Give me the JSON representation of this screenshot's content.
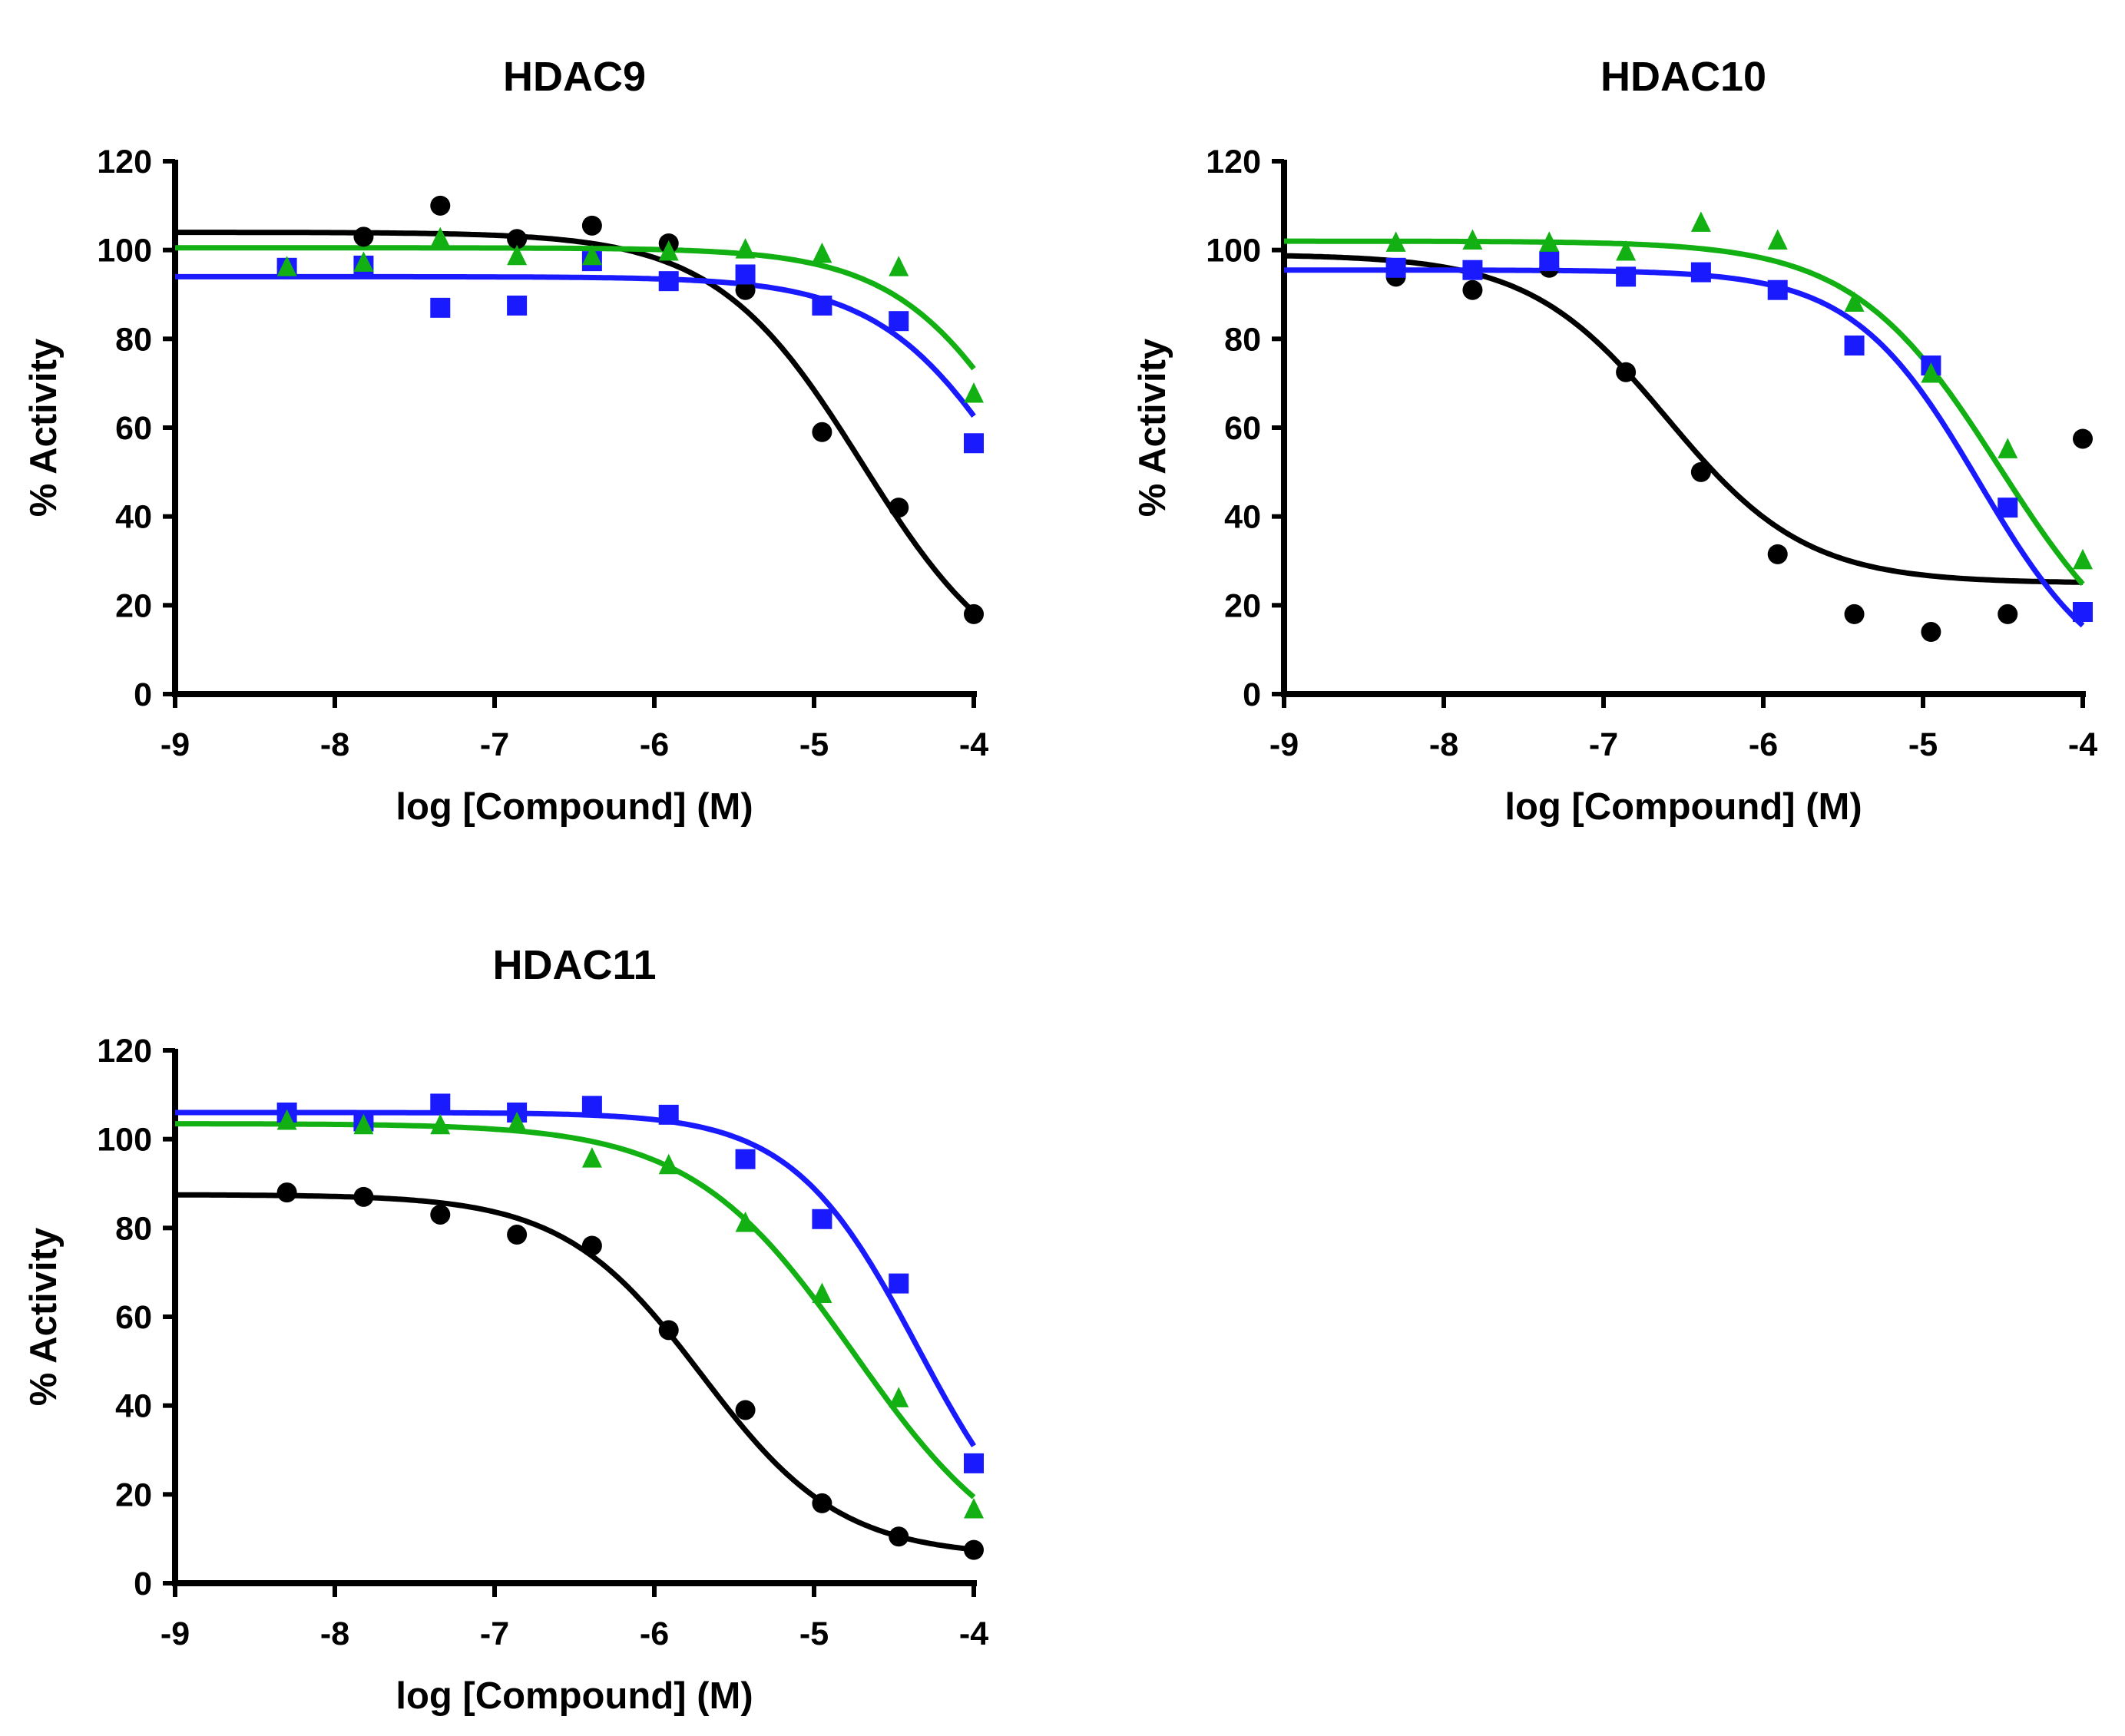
{
  "figure": {
    "description": "Dose-response curves of % Activity vs log compound concentration",
    "series_colors": {
      "black": "#000000",
      "blue": "#1a1aff",
      "green": "#12b012"
    },
    "series_markers": {
      "black": "circle",
      "blue": "square",
      "green": "triangle"
    }
  },
  "chart_data": [
    {
      "type": "scatter",
      "title": "HDAC9",
      "xlabel": "log [Compound] (M)",
      "ylabel": "% Activity",
      "xlim": [
        -9,
        -4
      ],
      "ylim": [
        0,
        120
      ],
      "xticks": [
        "-9",
        "-8",
        "-7",
        "-6",
        "-5",
        "-4"
      ],
      "yticks": [
        "0",
        "20",
        "40",
        "60",
        "80",
        "100",
        "120"
      ],
      "x": [
        -8.3,
        -7.82,
        -7.34,
        -6.86,
        -6.39,
        -5.91,
        -5.43,
        -4.95,
        -4.47,
        -4.0
      ],
      "series": [
        {
          "name": "black",
          "marker": "circle",
          "values": [
            96,
            103,
            110,
            102.5,
            105.5,
            101.5,
            91,
            59,
            42,
            18
          ],
          "fit": {
            "top": 104,
            "bottom": 0,
            "logIC50": -4.7,
            "hill": 0.95
          }
        },
        {
          "name": "blue",
          "marker": "square",
          "values": [
            96,
            96.5,
            87,
            87.5,
            97.5,
            93,
            94.5,
            87.5,
            84,
            56.5
          ],
          "fit": {
            "top": 94,
            "bottom": 0,
            "logIC50": -3.7,
            "hill": 1.0
          }
        },
        {
          "name": "green",
          "marker": "triangle",
          "values": [
            96,
            97,
            102.5,
            98.5,
            98.5,
            99.5,
            100,
            99,
            96,
            67.5
          ],
          "fit": {
            "top": 100.5,
            "bottom": 0,
            "logIC50": -3.57,
            "hill": 1.0
          }
        }
      ]
    },
    {
      "type": "scatter",
      "title": "HDAC10",
      "xlabel": "log [Compound] (M)",
      "ylabel": "% Activity",
      "xlim": [
        -9,
        -4
      ],
      "ylim": [
        0,
        120
      ],
      "xticks": [
        "-9",
        "-8",
        "-7",
        "-6",
        "-5",
        "-4"
      ],
      "yticks": [
        "0",
        "20",
        "40",
        "60",
        "80",
        "100",
        "120"
      ],
      "x": [
        -8.3,
        -7.82,
        -7.34,
        -6.86,
        -6.39,
        -5.91,
        -5.43,
        -4.95,
        -4.47,
        -4.0
      ],
      "series": [
        {
          "name": "black",
          "marker": "circle",
          "values": [
            94,
            91,
            96,
            72.5,
            50,
            31.5,
            18,
            14,
            18,
            57.5
          ],
          "fit": {
            "top": 99,
            "bottom": 25,
            "logIC50": -6.6,
            "hill": 1.0
          }
        },
        {
          "name": "blue",
          "marker": "square",
          "values": [
            96,
            95.5,
            97.5,
            94,
            95,
            91,
            78.5,
            74,
            42,
            18.5
          ],
          "fit": {
            "top": 95.5,
            "bottom": 0,
            "logIC50": -4.65,
            "hill": 1.1
          }
        },
        {
          "name": "green",
          "marker": "triangle",
          "values": [
            101.5,
            102,
            101.5,
            99.5,
            106,
            102,
            88,
            72,
            55,
            30
          ],
          "fit": {
            "top": 102,
            "bottom": 0,
            "logIC50": -4.52,
            "hill": 0.95
          }
        }
      ]
    },
    {
      "type": "scatter",
      "title": "HDAC11",
      "xlabel": "log [Compound] (M)",
      "ylabel": "% Activity",
      "xlim": [
        -9,
        -4
      ],
      "ylim": [
        0,
        120
      ],
      "xticks": [
        "-9",
        "-8",
        "-7",
        "-6",
        "-5",
        "-4"
      ],
      "yticks": [
        "0",
        "20",
        "40",
        "60",
        "80",
        "100",
        "120"
      ],
      "x": [
        -8.3,
        -7.82,
        -7.34,
        -6.86,
        -6.39,
        -5.91,
        -5.43,
        -4.95,
        -4.47,
        -4.0
      ],
      "series": [
        {
          "name": "black",
          "marker": "circle",
          "values": [
            88,
            87,
            83,
            78.5,
            76,
            57,
            39,
            18,
            10.5,
            7.5
          ],
          "fit": {
            "top": 87.5,
            "bottom": 6,
            "logIC50": -5.7,
            "hill": 1.0
          }
        },
        {
          "name": "blue",
          "marker": "square",
          "values": [
            106,
            104,
            108,
            106,
            107.5,
            105.5,
            95.5,
            82,
            67.5,
            27
          ],
          "fit": {
            "top": 106,
            "bottom": 0,
            "logIC50": -4.35,
            "hill": 1.1
          }
        },
        {
          "name": "green",
          "marker": "triangle",
          "values": [
            104,
            103,
            103,
            103.5,
            95.5,
            94,
            81,
            65,
            41.5,
            16.5
          ],
          "fit": {
            "top": 103.5,
            "bottom": 0,
            "logIC50": -4.75,
            "hill": 0.85
          }
        }
      ]
    }
  ]
}
